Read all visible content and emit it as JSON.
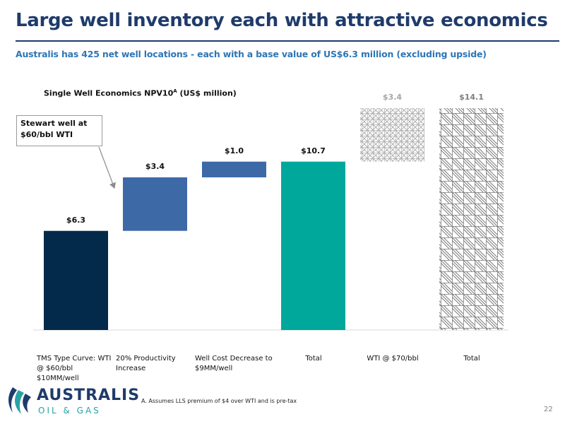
{
  "header": {
    "title": "Large well inventory each with attractive economics",
    "subtitle": "Australis has 425 net well locations - each with a base value of US$6.3 million (excluding upside)"
  },
  "chart_data": {
    "type": "waterfall",
    "title": "Single Well Economics NPV10",
    "title_note": "A",
    "title_units": "(US$ million)",
    "categories": [
      "TMS Type Curve: WTI @ $60/bbl $10MM/well",
      "20% Productivity Increase",
      "Well Cost Decrease to $9MM/well",
      "Total",
      "WTI @ $70/bbl",
      "Total"
    ],
    "values": [
      6.3,
      3.4,
      1.0,
      10.7,
      3.4,
      14.1
    ],
    "value_labels": [
      "$6.3",
      "$3.4",
      "$1.0",
      "$10.7",
      "$3.4",
      "$14.1"
    ],
    "measures": [
      "absolute",
      "relative",
      "relative",
      "total",
      "relative",
      "total"
    ],
    "colors": [
      "#032a4a",
      "#3e69a7",
      "#3e69a7",
      "#00a89c",
      "#a6a6a6",
      "#7f7f7f"
    ],
    "fills": [
      "solid",
      "solid",
      "solid",
      "solid",
      "grid-hatch",
      "diagonal-hatch"
    ],
    "annotation": "Stewart well at $60/bbl WTI"
  },
  "footnote": "A. Assumes LLS premium of $4 over WTI and is pre-tax",
  "logo": {
    "name": "AUSTRALIS",
    "tagline": "OIL & GAS"
  },
  "page_number": "22"
}
